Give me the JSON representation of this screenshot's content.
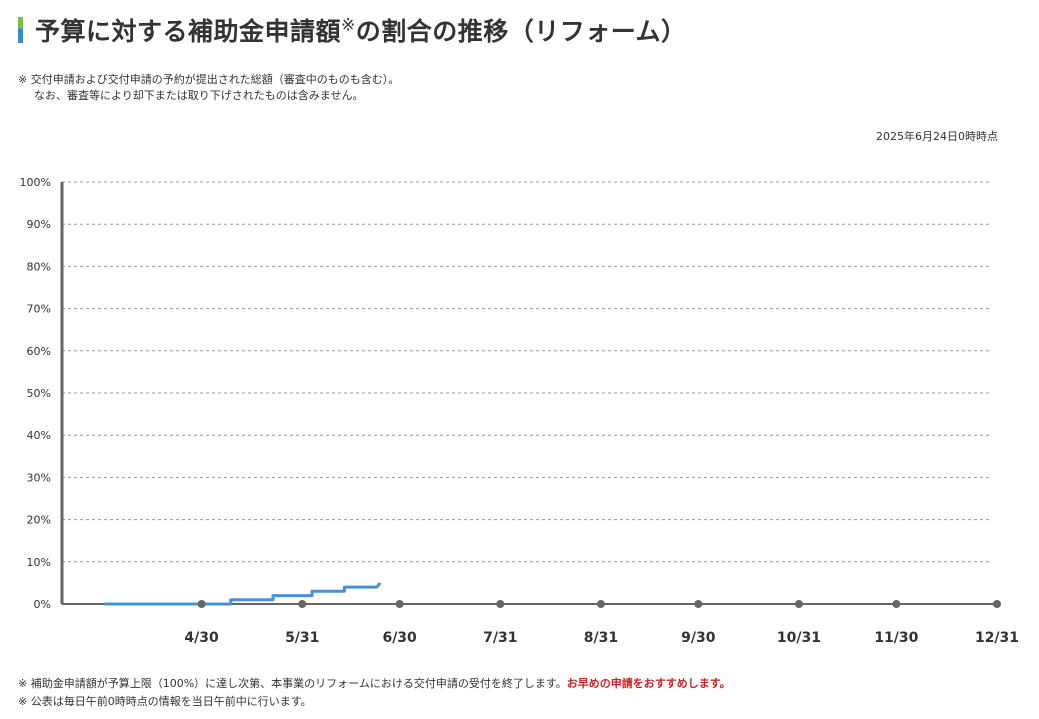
{
  "title": {
    "main": "予算に対する補助金申請額",
    "mark": "※",
    "rest": "の割合の推移（リフォーム）"
  },
  "notes": {
    "top_line1": "※ 交付申請および交付申請の予約が提出された総額（審査中のものも含む）。",
    "top_line2": "なお、審査等により却下または取り下げされたものは含みません。",
    "bottom_line1_a": "※ 補助金申請額が予算上限（100%）に達し次第、本事業のリフォームにおける交付申請の受付を終了します。",
    "bottom_line1_b": "お早めの申請をおすすめします。",
    "bottom_line2": "※ 公表は毎日午前0時時点の情報を当日午前中に行います。"
  },
  "as_of": "2025年6月24日0時時点",
  "colors": {
    "line": "#4a90d9",
    "axis": "#666666",
    "grid": "#999999",
    "marker": "#666666",
    "accent_green": "#79c142",
    "accent_blue": "#2f8ed6",
    "warning_red": "#cc2222"
  },
  "chart_data": {
    "type": "line",
    "title": "予算に対する補助金申請額※の割合の推移（リフォーム）",
    "xlabel": "",
    "ylabel": "",
    "y_ticks": [
      0,
      10,
      20,
      30,
      40,
      50,
      60,
      70,
      80,
      90,
      100
    ],
    "y_tick_labels": [
      "0%",
      "10%",
      "20%",
      "30%",
      "40%",
      "50%",
      "60%",
      "70%",
      "80%",
      "90%",
      "100%"
    ],
    "ylim": [
      0,
      100
    ],
    "x_start": "2025-03-18",
    "x_end": "2025-12-31",
    "x_ticks": [
      {
        "date": "2025-04-30",
        "label": "4/30"
      },
      {
        "date": "2025-05-31",
        "label": "5/31"
      },
      {
        "date": "2025-06-30",
        "label": "6/30"
      },
      {
        "date": "2025-07-31",
        "label": "7/31"
      },
      {
        "date": "2025-08-31",
        "label": "8/31"
      },
      {
        "date": "2025-09-30",
        "label": "9/30"
      },
      {
        "date": "2025-10-31",
        "label": "10/31"
      },
      {
        "date": "2025-11-30",
        "label": "11/30"
      },
      {
        "date": "2025-12-31",
        "label": "12/31"
      }
    ],
    "grid": true,
    "series": [
      {
        "name": "",
        "points": [
          {
            "x": "2025-03-31",
            "y": 0.0
          },
          {
            "x": "2025-05-09",
            "y": 0.0
          },
          {
            "x": "2025-05-09",
            "y": 1.0
          },
          {
            "x": "2025-05-22",
            "y": 1.0
          },
          {
            "x": "2025-05-22",
            "y": 2.0
          },
          {
            "x": "2025-06-03",
            "y": 2.0
          },
          {
            "x": "2025-06-03",
            "y": 3.0
          },
          {
            "x": "2025-06-13",
            "y": 3.0
          },
          {
            "x": "2025-06-13",
            "y": 4.0
          },
          {
            "x": "2025-06-23",
            "y": 4.0
          },
          {
            "x": "2025-06-24",
            "y": 5.0
          }
        ]
      }
    ]
  }
}
